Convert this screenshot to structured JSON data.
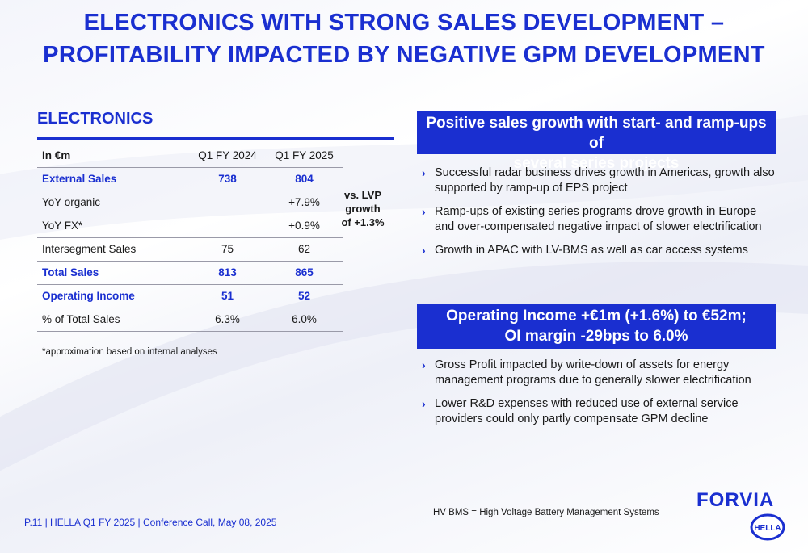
{
  "title": {
    "line1": "ELECTRONICS WITH STRONG SALES DEVELOPMENT –",
    "line2": "PROFITABILITY IMPACTED BY NEGATIVE GPM DEVELOPMENT"
  },
  "section": {
    "heading": "ELECTRONICS"
  },
  "table": {
    "header": {
      "label": "In €m",
      "col1": "Q1 FY 2024",
      "col2": "Q1 FY 2025"
    },
    "rows": [
      {
        "label": "External Sales",
        "v1": "738",
        "v2": "804"
      },
      {
        "label": "YoY organic",
        "v1": "",
        "v2": "+7.9%"
      },
      {
        "label": "YoY FX*",
        "v1": "",
        "v2": "+0.9%"
      },
      {
        "label": "Intersegment Sales",
        "v1": "75",
        "v2": "62"
      },
      {
        "label": "Total Sales",
        "v1": "813",
        "v2": "865"
      },
      {
        "label": "Operating Income",
        "v1": "51",
        "v2": "52"
      },
      {
        "label": "% of Total Sales",
        "v1": "6.3%",
        "v2": "6.0%"
      }
    ],
    "lvp_note": {
      "line1": "vs. LVP",
      "line2": "growth",
      "line3": "of +1.3%"
    },
    "footnote": "*approximation based on internal analyses"
  },
  "right": {
    "banner1": {
      "line1": "Positive sales growth with start- and ramp-ups of",
      "line2": "several series projects"
    },
    "bullets1": [
      "Successful radar business drives growth in Americas, growth also supported by ramp-up of EPS project",
      "Ramp-ups of existing series programs drove growth in Europe and over-compensated negative impact of slower electrification",
      "Growth in APAC with LV-BMS as well as car access systems"
    ],
    "banner2": {
      "line1": "Operating Income +€1m (+1.6%) to €52m;",
      "line2": "OI margin -29bps to 6.0%"
    },
    "bullets2": [
      "Gross Profit impacted by write-down of assets for energy management programs due to generally slower electrification",
      "Lower R&D expenses with reduced use of external service providers could only partly compensate GPM decline"
    ]
  },
  "footer": {
    "left": "P.11 | HELLA Q1 FY 2025 | Conference Call, May 08, 2025",
    "middle": "HV BMS = High Voltage Battery Management Systems",
    "brand": "FORVIA",
    "logo_text": "HELLA"
  },
  "colors": {
    "accent": "#1a2fd0"
  },
  "icons": [
    "chevron-right-icon",
    "hella-logo"
  ]
}
